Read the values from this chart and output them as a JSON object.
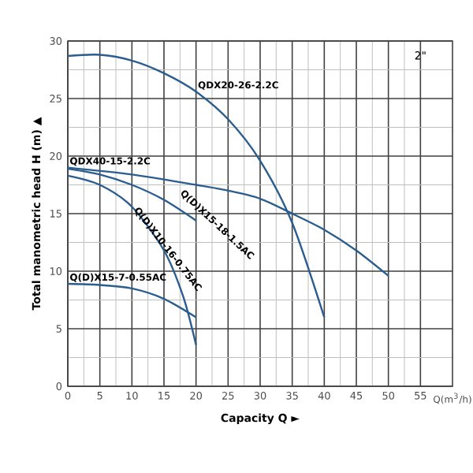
{
  "chart_data": {
    "type": "line",
    "xlabel": "Capacity Q ►",
    "ylabel": "Total manometric head H (m) ▲",
    "annotations": [
      "2\"",
      "Q(m$^{3}$/h)"
    ],
    "xlim": [
      0,
      60
    ],
    "ylim": [
      0,
      30
    ],
    "xticks": [
      0,
      5,
      10,
      15,
      20,
      25,
      30,
      35,
      40,
      45,
      50,
      55
    ],
    "yticks": [
      0,
      5,
      10,
      15,
      20,
      25,
      30
    ],
    "grid": true,
    "marker": "none",
    "line_style": "solid",
    "series": [
      {
        "name": "QDX20-26-2.2C",
        "color": "#2b5d8f",
        "x": [
          0,
          5,
          10,
          15,
          20,
          25,
          30,
          35,
          40
        ],
        "values": [
          28.7,
          28.8,
          28.3,
          27.2,
          25.6,
          23.2,
          19.6,
          14.2,
          6
        ]
      },
      {
        "name": "QDX40-15-2.2C",
        "color": "#2b5d8f",
        "x": [
          0,
          10,
          20,
          25,
          30,
          35,
          40,
          45,
          50
        ],
        "values": [
          19,
          18.4,
          17.5,
          17,
          16.3,
          15,
          13.6,
          11.8,
          9.6
        ]
      },
      {
        "name": "Q(D)X15-18-1.5AC",
        "color": "#2b5d8f",
        "x": [
          0,
          5,
          10,
          15,
          20
        ],
        "values": [
          18.9,
          18.4,
          17.5,
          16.2,
          14.4
        ]
      },
      {
        "name": "Q(D)X10-16-0.75AC",
        "color": "#2b5d8f",
        "x": [
          0,
          5,
          10,
          15,
          18,
          20
        ],
        "values": [
          18.3,
          17.5,
          15.6,
          11.8,
          7.8,
          3.6
        ]
      },
      {
        "name": "Q(D)X15-7-0.55AC",
        "color": "#2b5d8f",
        "x": [
          0,
          5,
          10,
          15,
          20
        ],
        "values": [
          8.9,
          8.8,
          8.5,
          7.6,
          6.0
        ]
      }
    ]
  }
}
